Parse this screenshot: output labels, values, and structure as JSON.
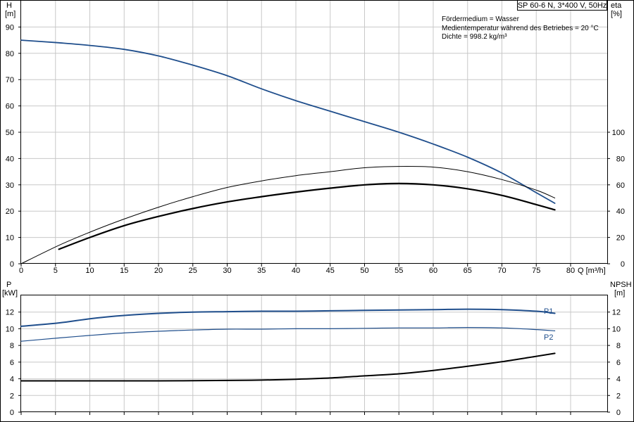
{
  "title": "SP 60-6 N, 3*400 V, 50Hz",
  "info_lines": [
    "Fördermedium = Wasser",
    "Medientemperatur während des Betriebes = 20 °C",
    "Dichte = 998.2 kg/m³"
  ],
  "colors": {
    "blue": "#1f4e8c",
    "black": "#000000",
    "grid": "#c8c8c8"
  },
  "chart_data": [
    {
      "type": "line",
      "x_axis": {
        "label": "Q [m³/h]",
        "range": [
          0,
          85
        ],
        "ticks": [
          "0",
          "5",
          "10",
          "15",
          "20",
          "25",
          "30",
          "35",
          "40",
          "45",
          "50",
          "55",
          "60",
          "65",
          "70",
          "75",
          "80"
        ]
      },
      "left_axis": {
        "label": "H",
        "unit": "[m]",
        "range": [
          0,
          100
        ],
        "ticks": [
          "0",
          "10",
          "20",
          "30",
          "40",
          "50",
          "60",
          "70",
          "80",
          "90"
        ]
      },
      "right_axis": {
        "label": "eta",
        "unit": "[%]",
        "range": [
          0,
          200
        ],
        "ticks": [
          "0",
          "20",
          "40",
          "60",
          "80",
          "100"
        ]
      },
      "grid": true,
      "series": [
        {
          "axis": "left",
          "color": "#1f4e8c",
          "x": [
            0,
            5.5,
            10,
            15,
            20,
            25,
            30,
            35,
            40,
            45,
            50,
            55,
            60,
            65,
            70,
            75,
            77.7
          ],
          "y": [
            85,
            84,
            83,
            81.5,
            79,
            75.5,
            71.5,
            66.5,
            62,
            58,
            54,
            50,
            45.5,
            40.5,
            34.5,
            27,
            23
          ]
        },
        {
          "axis": "right",
          "color": "#000000",
          "width": 1,
          "x": [
            0,
            5.5,
            10,
            15,
            20,
            25,
            30,
            35,
            40,
            45,
            50,
            55,
            60,
            65,
            70,
            75,
            77.7
          ],
          "y": [
            0,
            14,
            24,
            34,
            43,
            51,
            58,
            63,
            67,
            70,
            73,
            74,
            73.5,
            70,
            64,
            56,
            50
          ]
        },
        {
          "axis": "right",
          "color": "#000000",
          "width": 2.2,
          "x": [
            5.5,
            10,
            15,
            20,
            25,
            30,
            35,
            40,
            45,
            50,
            55,
            60,
            65,
            70,
            75,
            77.7
          ],
          "y": [
            11,
            20,
            29,
            36,
            42,
            47,
            51,
            54.5,
            57.5,
            60,
            61,
            60,
            57,
            52,
            45,
            41
          ]
        }
      ]
    },
    {
      "type": "line",
      "x_axis": {
        "range": [
          0,
          85
        ]
      },
      "left_axis": {
        "label": "P",
        "unit": "[kW]",
        "range": [
          0,
          14
        ],
        "ticks": [
          "0",
          "2",
          "4",
          "6",
          "8",
          "10",
          "12"
        ]
      },
      "right_axis": {
        "label": "NPSH",
        "unit": "[m]",
        "range": [
          0,
          14
        ],
        "ticks": [
          "0",
          "2",
          "4",
          "6",
          "8",
          "10",
          "12"
        ]
      },
      "grid": true,
      "series": [
        {
          "name": "P1",
          "axis": "left",
          "color": "#1f4e8c",
          "width": 2,
          "x": [
            0,
            5.5,
            10,
            15,
            20,
            25,
            30,
            35,
            40,
            45,
            50,
            55,
            60,
            65,
            70,
            75,
            77.7
          ],
          "y": [
            10.3,
            10.7,
            11.2,
            11.6,
            11.85,
            12.0,
            12.05,
            12.1,
            12.1,
            12.15,
            12.2,
            12.25,
            12.3,
            12.35,
            12.3,
            12.1,
            11.85
          ]
        },
        {
          "name": "P2",
          "axis": "left",
          "color": "#1f4e8c",
          "width": 1.2,
          "x": [
            0,
            5.5,
            10,
            15,
            20,
            25,
            30,
            35,
            40,
            45,
            50,
            55,
            60,
            65,
            70,
            75,
            77.7
          ],
          "y": [
            8.5,
            8.9,
            9.2,
            9.5,
            9.7,
            9.85,
            9.95,
            9.95,
            10.0,
            10.0,
            10.05,
            10.1,
            10.1,
            10.15,
            10.1,
            9.9,
            9.75
          ]
        },
        {
          "axis": "right",
          "color": "#000000",
          "width": 2,
          "x": [
            0,
            5.5,
            10,
            20,
            30,
            35,
            40,
            45,
            50,
            55,
            60,
            65,
            70,
            75,
            77.7
          ],
          "y": [
            3.75,
            3.75,
            3.75,
            3.75,
            3.8,
            3.85,
            3.95,
            4.1,
            4.35,
            4.6,
            5.0,
            5.5,
            6.05,
            6.7,
            7.05
          ]
        }
      ]
    }
  ]
}
